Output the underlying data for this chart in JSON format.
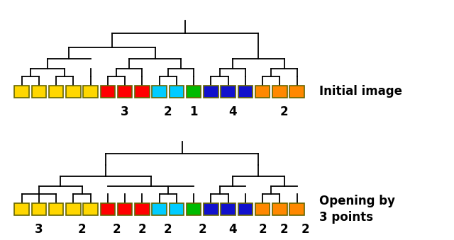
{
  "colors": [
    "#FFD700",
    "#FFD700",
    "#FFD700",
    "#FFD700",
    "#FFD700",
    "#FF0000",
    "#FF0000",
    "#FF0000",
    "#00CCFF",
    "#00CCFF",
    "#00BB00",
    "#1111CC",
    "#1111CC",
    "#1111CC",
    "#FF8800",
    "#FF8800",
    "#FF8800"
  ],
  "box_edge": "#888800",
  "background": "#FFFFFF",
  "label1_text": "Initial image",
  "label2_text": "Opening by\n3 points",
  "label_fontsize": 12,
  "label_fontweight": "bold",
  "num_fontsize": 12,
  "num_fontweight": "bold"
}
